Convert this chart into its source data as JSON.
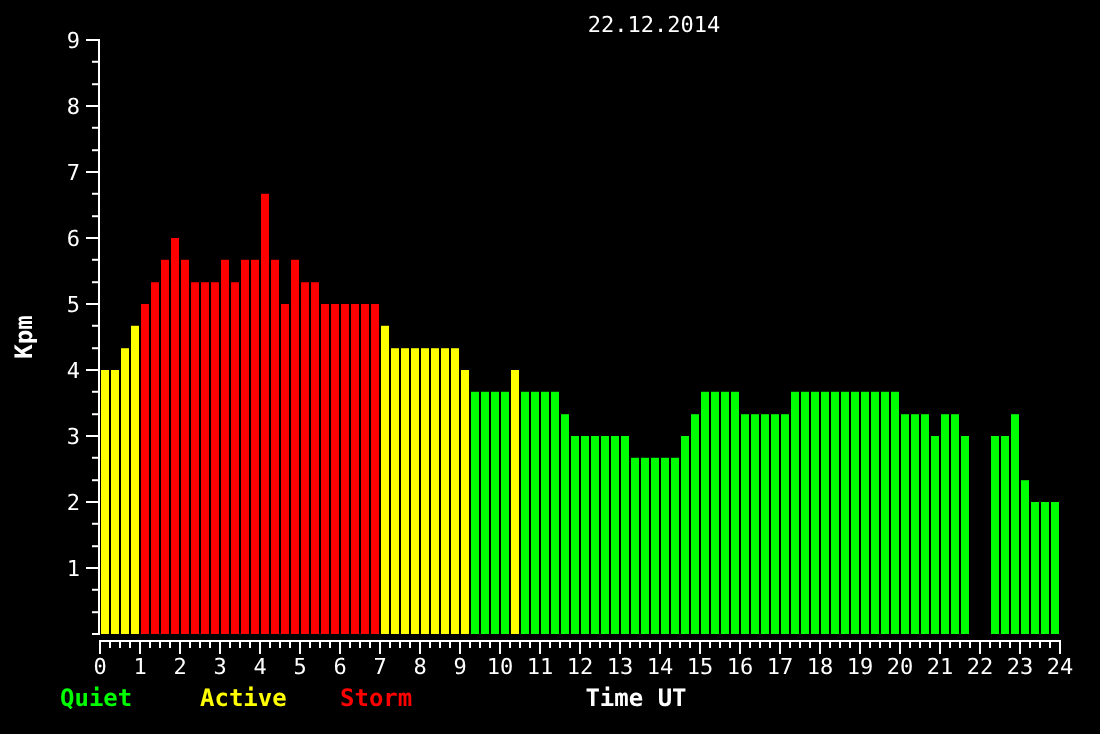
{
  "chart_data": {
    "type": "bar",
    "title": "22.12.2014",
    "xlabel": "Time UT",
    "ylabel": "Kpm",
    "xlim": [
      0,
      24
    ],
    "xticks": [
      0,
      {
        "value": 0.25,
        "label": null
      },
      {
        "value": 0.5,
        "label": null
      },
      {
        "value": 0.75,
        "label": null
      },
      1,
      {
        "value": 1.25,
        "label": null
      },
      {
        "value": 1.5,
        "label": null
      },
      {
        "value": 1.75,
        "label": null
      },
      2,
      {
        "value": 2.25,
        "label": null
      },
      {
        "value": 2.5,
        "label": null
      },
      {
        "value": 2.75,
        "label": null
      },
      3,
      {
        "value": 3.25,
        "label": null
      },
      {
        "value": 3.5,
        "label": null
      },
      {
        "value": 3.75,
        "label": null
      },
      4,
      {
        "value": 4.25,
        "label": null
      },
      {
        "value": 4.5,
        "label": null
      },
      {
        "value": 4.75,
        "label": null
      },
      5,
      {
        "value": 5.25,
        "label": null
      },
      {
        "value": 5.5,
        "label": null
      },
      {
        "value": 5.75,
        "label": null
      },
      6,
      {
        "value": 6.25,
        "label": null
      },
      {
        "value": 6.5,
        "label": null
      },
      {
        "value": 6.75,
        "label": null
      },
      7,
      {
        "value": 7.25,
        "label": null
      },
      {
        "value": 7.5,
        "label": null
      },
      {
        "value": 7.75,
        "label": null
      },
      8,
      {
        "value": 8.25,
        "label": null
      },
      {
        "value": 8.5,
        "label": null
      },
      {
        "value": 8.75,
        "label": null
      },
      9,
      {
        "value": 9.25,
        "label": null
      },
      {
        "value": 9.5,
        "label": null
      },
      {
        "value": 9.75,
        "label": null
      },
      10,
      {
        "value": 10.25,
        "label": null
      },
      {
        "value": 10.5,
        "label": null
      },
      {
        "value": 10.75,
        "label": null
      },
      11,
      {
        "value": 11.25,
        "label": null
      },
      {
        "value": 11.5,
        "label": null
      },
      {
        "value": 11.75,
        "label": null
      },
      12,
      {
        "value": 12.25,
        "label": null
      },
      {
        "value": 12.5,
        "label": null
      },
      {
        "value": 12.75,
        "label": null
      },
      13,
      {
        "value": 13.25,
        "label": null
      },
      {
        "value": 13.5,
        "label": null
      },
      {
        "value": 13.75,
        "label": null
      },
      14,
      {
        "value": 14.25,
        "label": null
      },
      {
        "value": 14.5,
        "label": null
      },
      {
        "value": 14.75,
        "label": null
      },
      15,
      {
        "value": 15.25,
        "label": null
      },
      {
        "value": 15.5,
        "label": null
      },
      {
        "value": 15.75,
        "label": null
      },
      16,
      {
        "value": 16.25,
        "label": null
      },
      {
        "value": 16.5,
        "label": null
      },
      {
        "value": 16.75,
        "label": null
      },
      17,
      {
        "value": 17.25,
        "label": null
      },
      {
        "value": 17.5,
        "label": null
      },
      {
        "value": 17.75,
        "label": null
      },
      18,
      {
        "value": 18.25,
        "label": null
      },
      {
        "value": 18.5,
        "label": null
      },
      {
        "value": 18.75,
        "label": null
      },
      19,
      {
        "value": 19.25,
        "label": null
      },
      {
        "value": 19.5,
        "label": null
      },
      {
        "value": 19.75,
        "label": null
      },
      20,
      {
        "value": 20.25,
        "label": null
      },
      {
        "value": 20.5,
        "label": null
      },
      {
        "value": 20.75,
        "label": null
      },
      21,
      {
        "value": 21.25,
        "label": null
      },
      {
        "value": 21.5,
        "label": null
      },
      {
        "value": 21.75,
        "label": null
      },
      22,
      {
        "value": 22.25,
        "label": null
      },
      {
        "value": 22.5,
        "label": null
      },
      {
        "value": 22.75,
        "label": null
      },
      23,
      {
        "value": 23.25,
        "label": null
      },
      {
        "value": 23.5,
        "label": null
      },
      {
        "value": 23.75,
        "label": null
      },
      24
    ],
    "ylim": [
      0,
      9
    ],
    "yticks": [
      {
        "value": 0,
        "label": null
      },
      {
        "value": 0.33,
        "label": null
      },
      {
        "value": 0.67,
        "label": null
      },
      1,
      {
        "value": 1.33,
        "label": null
      },
      {
        "value": 1.67,
        "label": null
      },
      2,
      {
        "value": 2.33,
        "label": null
      },
      {
        "value": 2.67,
        "label": null
      },
      3,
      {
        "value": 3.33,
        "label": null
      },
      {
        "value": 3.67,
        "label": null
      },
      4,
      {
        "value": 4.33,
        "label": null
      },
      {
        "value": 4.67,
        "label": null
      },
      5,
      {
        "value": 5.33,
        "label": null
      },
      {
        "value": 5.67,
        "label": null
      },
      6,
      {
        "value": 6.33,
        "label": null
      },
      {
        "value": 6.67,
        "label": null
      },
      7,
      {
        "value": 7.33,
        "label": null
      },
      {
        "value": 7.67,
        "label": null
      },
      8,
      {
        "value": 8.33,
        "label": null
      },
      {
        "value": 8.67,
        "label": null
      },
      9
    ],
    "legend": "bottom left",
    "series": [
      {
        "name": "Quiet",
        "color": "#00ff00",
        "x": [
          9.375,
          9.625,
          9.875,
          10.125,
          10.625,
          10.875,
          11.125,
          11.375,
          11.625,
          11.875,
          12.125,
          12.375,
          12.625,
          12.875,
          13.125,
          13.375,
          13.625,
          13.875,
          14.125,
          14.375,
          14.625,
          14.875,
          15.125,
          15.375,
          15.625,
          15.875,
          16.125,
          16.375,
          16.625,
          16.875,
          17.125,
          17.375,
          17.625,
          17.875,
          18.125,
          18.375,
          18.625,
          18.875,
          19.125,
          19.375,
          19.625,
          19.875,
          20.125,
          20.375,
          20.625,
          20.875,
          21.125,
          21.375,
          21.625,
          22.375,
          22.625,
          22.875,
          23.125,
          23.375,
          23.625,
          23.875
        ],
        "values": [
          3.67,
          3.67,
          3.67,
          3.67,
          3.67,
          3.67,
          3.67,
          3.67,
          3.33,
          3,
          3,
          3,
          3,
          3,
          3,
          2.67,
          2.67,
          2.67,
          2.67,
          2.67,
          3,
          3.33,
          3.67,
          3.67,
          3.67,
          3.67,
          3.33,
          3.33,
          3.33,
          3.33,
          3.33,
          3.67,
          3.67,
          3.67,
          3.67,
          3.67,
          3.67,
          3.67,
          3.67,
          3.67,
          3.67,
          3.67,
          3.33,
          3.33,
          3.33,
          3,
          3.33,
          3.33,
          3,
          3,
          3,
          3.33,
          2.33,
          2,
          2,
          2
        ]
      },
      {
        "name": "Active",
        "color": "#ffff00",
        "x": [
          0.125,
          0.375,
          0.625,
          0.875,
          7.125,
          7.375,
          7.625,
          7.875,
          8.125,
          8.375,
          8.625,
          8.875,
          9.125,
          10.375
        ],
        "values": [
          4,
          4,
          4.33,
          4.67,
          4.67,
          4.33,
          4.33,
          4.33,
          4.33,
          4.33,
          4.33,
          4.33,
          4,
          4
        ]
      },
      {
        "name": "Storm",
        "color": "#ff0000",
        "x": [
          1.125,
          1.375,
          1.625,
          1.875,
          2.125,
          2.375,
          2.625,
          2.875,
          3.125,
          3.375,
          3.625,
          3.875,
          4.125,
          4.375,
          4.625,
          4.875,
          5.125,
          5.375,
          5.625,
          5.875,
          6.125,
          6.375,
          6.625,
          6.875
        ],
        "values": [
          5,
          5.33,
          5.67,
          6,
          5.67,
          5.33,
          5.33,
          5.33,
          5.67,
          5.33,
          5.67,
          5.67,
          6.67,
          5.67,
          5,
          5.67,
          5.33,
          5.33,
          5,
          5,
          5,
          5,
          5,
          5
        ]
      }
    ]
  }
}
